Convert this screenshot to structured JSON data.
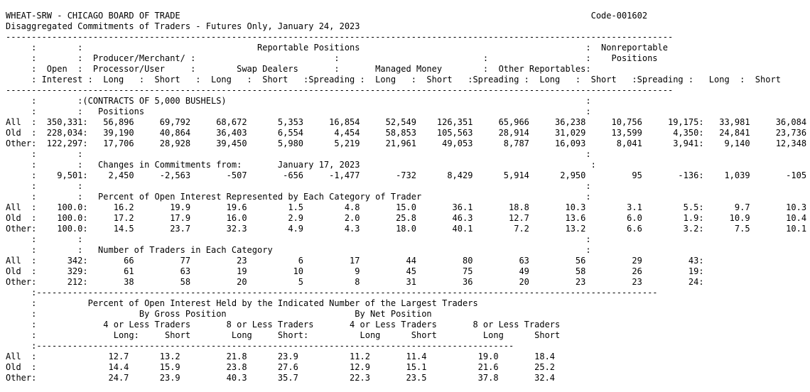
{
  "report": {
    "lines": [
      "WHEAT-SRW - CHICAGO BOARD OF TRADE                                                                                Code-001602",
      "Disaggregated Commitments of Traders - Futures Only, January 24, 2023",
      "----------------------------------------------------------------------------------------------------------------------------------",
      "     :        :                                  Reportable Positions                                            :  Nonreportable",
      "     :        :  Producer/Merchant/ :                           :                            :                   :    Positions",
      "     :  Open  :  Processor/User     :        Swap Dealers       :       Managed Money        :  Other Reportables:",
      "     : Interest :  Long   :  Short   :  Long   :  Short   :Spreading :  Long   :  Short   :Spreading :  Long   :  Short   :Spreading :   Long  :  Short",
      "----------------------------------------------------------------------------------------------------------------------------------",
      "     :        :(CONTRACTS OF 5,000 BUSHELS)                                                                      :",
      "     :        :   Positions                                                                                      :",
      "All  :  350,331:   56,896     69,792     68,672      5,353     16,854     52,549    126,351     65,966     36,238     10,756     19,175:   33,981     36,084",
      "Old  :  228,034:   39,190     40,864     36,403      6,554      4,454     58,853    105,563     28,914     31,029     13,599      4,350:   24,841     23,736",
      "Other:  122,297:   17,706     28,928     39,450      5,980      5,219     21,961     49,053      8,787     16,093      8,041      3,941:    9,140     12,348",
      "     :        :                                                                                                  :",
      "     :        :   Changes in Commitments from:       January 17, 2023                                             :",
      "     :    9,501:    2,450     -2,563       -507       -656     -1,477       -732      8,429      5,914      2,950         95       -136:    1,039       -105",
      "     :        :                                                                                                  :",
      "     :        :   Percent of Open Interest Represented by Each Category of Trader                                :",
      "All  :    100.0:     16.2       19.9       19.6        1.5        4.8       15.0       36.1       18.8       10.3        3.1        5.5:      9.7       10.3",
      "Old  :    100.0:     17.2       17.9       16.0        2.9        2.0       25.8       46.3       12.7       13.6        6.0        1.9:     10.9       10.4",
      "Other:    100.0:     14.5       23.7       32.3        4.9        4.3       18.0       40.1        7.2       13.2        6.6        3.2:      7.5       10.1",
      "     :        :                                                                                                  :",
      "     :        :   Number of Traders in Each Category                                                             :",
      "All  :      342:       66         77         23          6         17         44         80         63         56         29         43:",
      "Old  :      329:       61         63         19         10          9         45         75         49         58         26         19:",
      "Other:      212:       38         58         20          5          8         31         36         20         23         23         24:",
      "     :-------------------------------------------------------------------------------------------------------------------------",
      "     :          Percent of Open Interest Held by the Indicated Number of the Largest Traders",
      "     :                    By Gross Position                         By Net Position",
      "     :             4 or Less Traders       8 or Less Traders       4 or Less Traders       8 or Less Traders",
      "     :               Long:     Short        Long     Short:          Long      Short         Long      Short",
      "     :---------------------------------------------------------------------------------------------",
      "All  :              12.7      13.2         21.8      23.9          11.2       11.4          19.0       18.4",
      "Old  :              14.4      15.9         23.8      27.6          12.9       15.1          21.6       25.2",
      "Other:              24.7      23.9         40.3      35.7          22.3       23.5          37.8       32.4"
    ]
  }
}
